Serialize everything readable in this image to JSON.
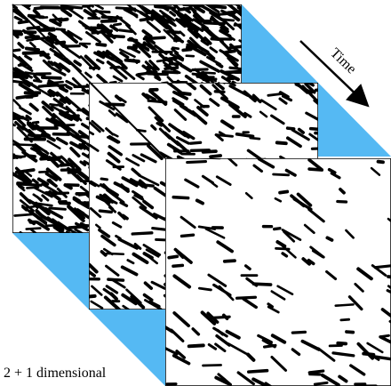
{
  "annotations": {
    "time": "Time",
    "dimension": "2 + 1 dimensional"
  }
}
